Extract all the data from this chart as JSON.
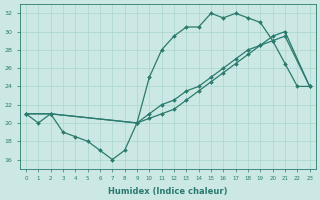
{
  "xlabel": "Humidex (Indice chaleur)",
  "xlim": [
    -0.5,
    23.5
  ],
  "ylim": [
    15,
    33
  ],
  "yticks": [
    16,
    18,
    20,
    22,
    24,
    26,
    28,
    30,
    32
  ],
  "xticks": [
    0,
    1,
    2,
    3,
    4,
    5,
    6,
    7,
    8,
    9,
    10,
    11,
    12,
    13,
    14,
    15,
    16,
    17,
    18,
    19,
    20,
    21,
    22,
    23
  ],
  "bg_color": "#cce8e5",
  "grid_color": "#b0d8d4",
  "line_color": "#2a7a6e",
  "line1_x": [
    0,
    1,
    2,
    3,
    4,
    5,
    6,
    7,
    8,
    9,
    10,
    11,
    12,
    13,
    14,
    15,
    16,
    17,
    18,
    19,
    20,
    21,
    22,
    23
  ],
  "line1_y": [
    21,
    20,
    21,
    19,
    18.5,
    18,
    17,
    16,
    17,
    20,
    25,
    28,
    29.5,
    30.5,
    30.5,
    32,
    31.5,
    32,
    31.5,
    31,
    29,
    26.5,
    24.0,
    24.0
  ],
  "line2_x": [
    0,
    2,
    9,
    10,
    11,
    12,
    13,
    14,
    15,
    16,
    17,
    18,
    19,
    20,
    21,
    23
  ],
  "line2_y": [
    21,
    21,
    20,
    21,
    22,
    22.5,
    23.5,
    24,
    25,
    26,
    27,
    28,
    28.5,
    29,
    29.5,
    24
  ],
  "line3_x": [
    0,
    2,
    9,
    10,
    11,
    12,
    13,
    14,
    15,
    16,
    17,
    18,
    19,
    20,
    21,
    23
  ],
  "line3_y": [
    21,
    21,
    20,
    20.5,
    21,
    21.5,
    22.5,
    23.5,
    24.5,
    25.5,
    26.5,
    27.5,
    28.5,
    29.5,
    30,
    24
  ],
  "marker": "D",
  "markersize": 2.0,
  "linewidth": 0.9,
  "figsize": [
    3.2,
    2.0
  ],
  "dpi": 100
}
